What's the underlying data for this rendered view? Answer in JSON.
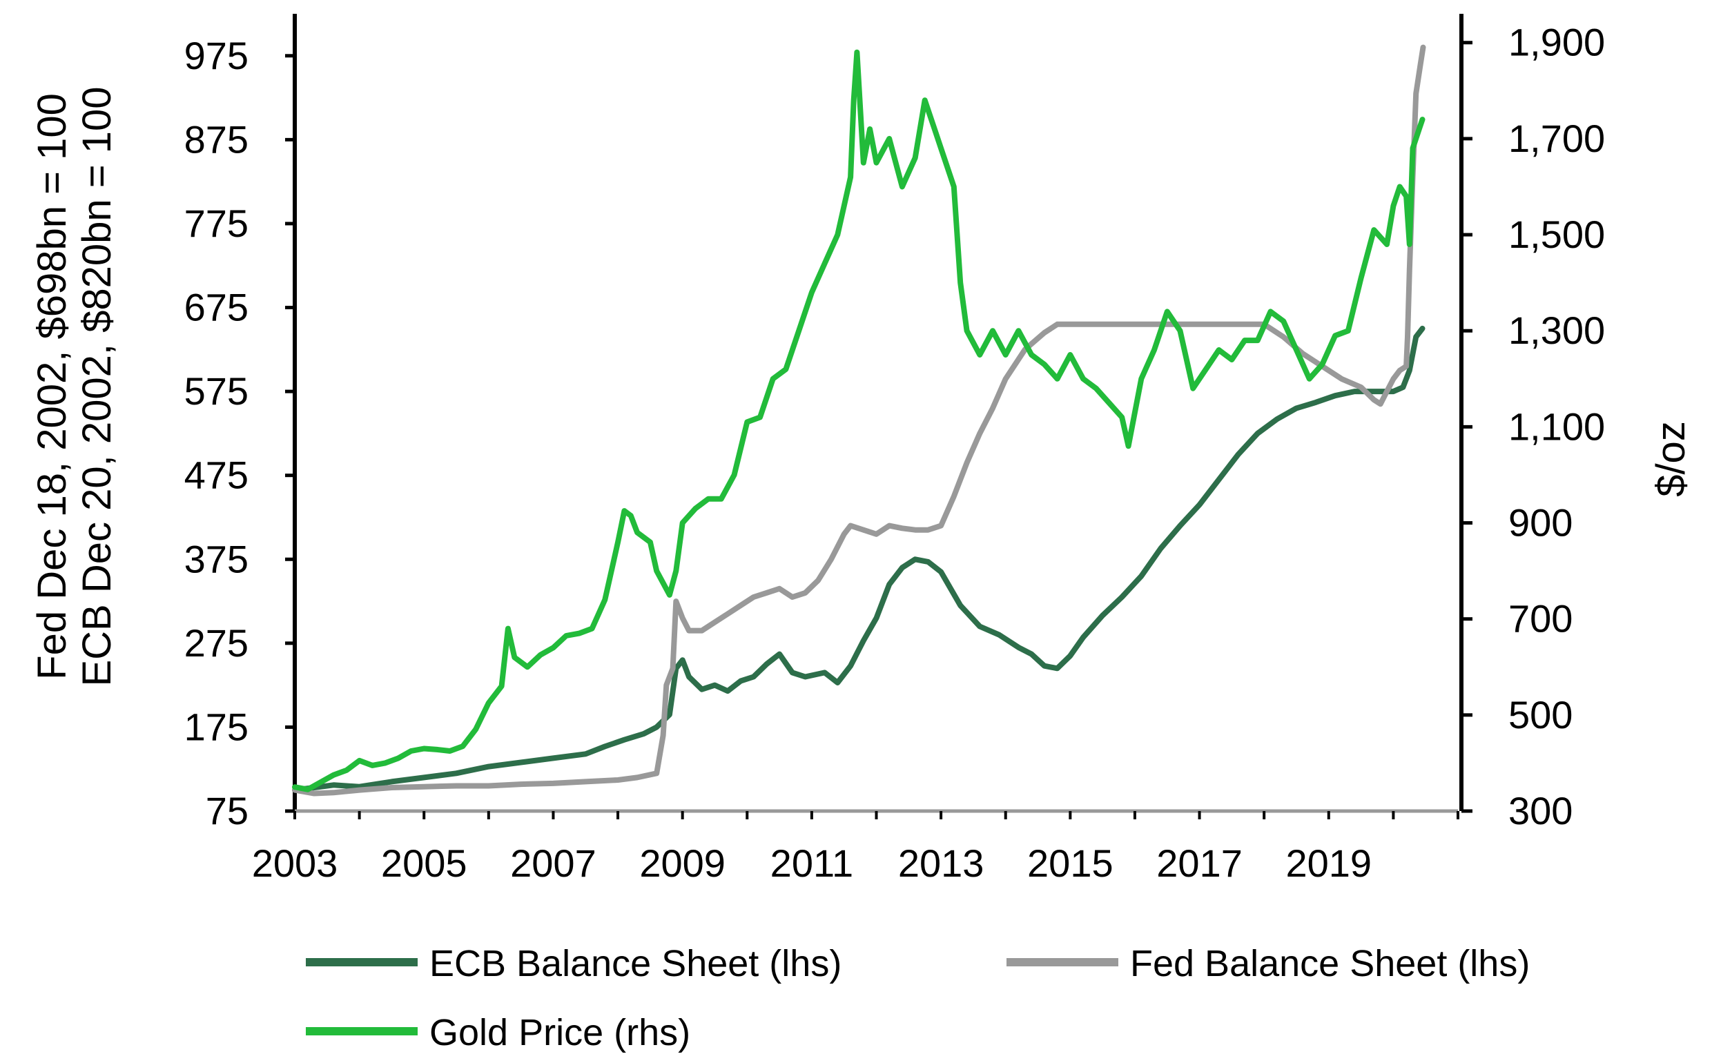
{
  "chart_data": {
    "type": "line",
    "title": "",
    "x_ticks": [
      "2003",
      "2005",
      "2007",
      "2009",
      "2011",
      "2013",
      "2015",
      "2017",
      "2019"
    ],
    "xlim": [
      2003.0,
      2021.0
    ],
    "y_left": {
      "label_line1": "Fed Dec 18, 2002, $698bn = 100",
      "label_line2": "ECB Dec 20, 2002, $820bn = 100",
      "lim": [
        75,
        1025
      ],
      "ticks": [
        75,
        175,
        275,
        375,
        475,
        575,
        675,
        775,
        875,
        975
      ],
      "tick_labels": [
        "75",
        "175",
        "275",
        "375",
        "475",
        "575",
        "675",
        "775",
        "875",
        "975"
      ]
    },
    "y_right": {
      "label": "$/oz",
      "lim": [
        300,
        1960
      ],
      "ticks": [
        300,
        500,
        700,
        900,
        1100,
        1300,
        1500,
        1700,
        1900
      ],
      "tick_labels": [
        "300",
        "500",
        "700",
        "900",
        "1,100",
        "1,300",
        "1,500",
        "1,700",
        "1,900"
      ]
    },
    "legend_position": "bottom",
    "series": [
      {
        "name": "ECB Balance Sheet (lhs)",
        "axis": "left",
        "color": "#2d6e4a",
        "points": [
          [
            2003.0,
            100
          ],
          [
            2003.3,
            103
          ],
          [
            2003.6,
            106
          ],
          [
            2004.0,
            104
          ],
          [
            2004.5,
            110
          ],
          [
            2005.0,
            115
          ],
          [
            2005.5,
            120
          ],
          [
            2006.0,
            128
          ],
          [
            2006.5,
            133
          ],
          [
            2007.0,
            138
          ],
          [
            2007.5,
            143
          ],
          [
            2007.8,
            152
          ],
          [
            2008.1,
            160
          ],
          [
            2008.4,
            167
          ],
          [
            2008.6,
            175
          ],
          [
            2008.8,
            190
          ],
          [
            2008.9,
            245
          ],
          [
            2009.0,
            255
          ],
          [
            2009.1,
            235
          ],
          [
            2009.3,
            220
          ],
          [
            2009.5,
            225
          ],
          [
            2009.7,
            218
          ],
          [
            2009.9,
            230
          ],
          [
            2010.1,
            235
          ],
          [
            2010.3,
            250
          ],
          [
            2010.5,
            262
          ],
          [
            2010.7,
            240
          ],
          [
            2010.9,
            235
          ],
          [
            2011.2,
            240
          ],
          [
            2011.4,
            228
          ],
          [
            2011.6,
            248
          ],
          [
            2011.8,
            278
          ],
          [
            2012.0,
            305
          ],
          [
            2012.2,
            345
          ],
          [
            2012.4,
            365
          ],
          [
            2012.6,
            375
          ],
          [
            2012.8,
            372
          ],
          [
            2013.0,
            360
          ],
          [
            2013.3,
            320
          ],
          [
            2013.6,
            295
          ],
          [
            2013.9,
            285
          ],
          [
            2014.2,
            270
          ],
          [
            2014.4,
            262
          ],
          [
            2014.6,
            248
          ],
          [
            2014.8,
            245
          ],
          [
            2015.0,
            260
          ],
          [
            2015.2,
            282
          ],
          [
            2015.5,
            308
          ],
          [
            2015.8,
            330
          ],
          [
            2016.1,
            355
          ],
          [
            2016.4,
            388
          ],
          [
            2016.7,
            415
          ],
          [
            2017.0,
            440
          ],
          [
            2017.3,
            470
          ],
          [
            2017.6,
            500
          ],
          [
            2017.9,
            525
          ],
          [
            2018.2,
            542
          ],
          [
            2018.5,
            555
          ],
          [
            2018.8,
            562
          ],
          [
            2019.1,
            570
          ],
          [
            2019.4,
            575
          ],
          [
            2019.7,
            575
          ],
          [
            2019.9,
            575
          ],
          [
            2020.0,
            575
          ],
          [
            2020.15,
            580
          ],
          [
            2020.25,
            600
          ],
          [
            2020.35,
            640
          ],
          [
            2020.45,
            650
          ]
        ]
      },
      {
        "name": "Fed Balance Sheet (lhs)",
        "axis": "left",
        "color": "#999999",
        "points": [
          [
            2003.0,
            100
          ],
          [
            2003.3,
            96
          ],
          [
            2003.6,
            97
          ],
          [
            2004.0,
            100
          ],
          [
            2004.5,
            103
          ],
          [
            2005.0,
            104
          ],
          [
            2005.5,
            105
          ],
          [
            2006.0,
            105
          ],
          [
            2006.5,
            107
          ],
          [
            2007.0,
            108
          ],
          [
            2007.5,
            110
          ],
          [
            2008.0,
            112
          ],
          [
            2008.3,
            115
          ],
          [
            2008.6,
            120
          ],
          [
            2008.7,
            165
          ],
          [
            2008.75,
            225
          ],
          [
            2008.85,
            245
          ],
          [
            2008.9,
            325
          ],
          [
            2009.0,
            305
          ],
          [
            2009.1,
            290
          ],
          [
            2009.3,
            290
          ],
          [
            2009.5,
            300
          ],
          [
            2009.7,
            310
          ],
          [
            2009.9,
            320
          ],
          [
            2010.1,
            330
          ],
          [
            2010.3,
            335
          ],
          [
            2010.5,
            340
          ],
          [
            2010.7,
            330
          ],
          [
            2010.9,
            335
          ],
          [
            2011.1,
            350
          ],
          [
            2011.3,
            375
          ],
          [
            2011.5,
            405
          ],
          [
            2011.6,
            415
          ],
          [
            2011.8,
            410
          ],
          [
            2012.0,
            405
          ],
          [
            2012.2,
            415
          ],
          [
            2012.4,
            412
          ],
          [
            2012.6,
            410
          ],
          [
            2012.8,
            410
          ],
          [
            2013.0,
            415
          ],
          [
            2013.2,
            450
          ],
          [
            2013.4,
            490
          ],
          [
            2013.6,
            525
          ],
          [
            2013.8,
            555
          ],
          [
            2014.0,
            590
          ],
          [
            2014.3,
            625
          ],
          [
            2014.6,
            645
          ],
          [
            2014.8,
            655
          ],
          [
            2015.0,
            655
          ],
          [
            2015.5,
            655
          ],
          [
            2016.0,
            655
          ],
          [
            2016.5,
            655
          ],
          [
            2017.0,
            655
          ],
          [
            2017.5,
            655
          ],
          [
            2018.0,
            655
          ],
          [
            2018.3,
            640
          ],
          [
            2018.6,
            620
          ],
          [
            2018.9,
            605
          ],
          [
            2019.2,
            590
          ],
          [
            2019.5,
            580
          ],
          [
            2019.7,
            565
          ],
          [
            2019.8,
            560
          ],
          [
            2019.9,
            575
          ],
          [
            2020.0,
            590
          ],
          [
            2020.1,
            600
          ],
          [
            2020.2,
            605
          ],
          [
            2020.22,
            640
          ],
          [
            2020.25,
            720
          ],
          [
            2020.3,
            830
          ],
          [
            2020.35,
            930
          ],
          [
            2020.42,
            965
          ],
          [
            2020.46,
            985
          ]
        ]
      },
      {
        "name": "Gold Price (rhs)",
        "axis": "right",
        "color": "#22bb3a",
        "points": [
          [
            2003.0,
            350
          ],
          [
            2003.2,
            345
          ],
          [
            2003.4,
            360
          ],
          [
            2003.6,
            375
          ],
          [
            2003.8,
            385
          ],
          [
            2004.0,
            405
          ],
          [
            2004.2,
            395
          ],
          [
            2004.4,
            400
          ],
          [
            2004.6,
            410
          ],
          [
            2004.8,
            425
          ],
          [
            2005.0,
            430
          ],
          [
            2005.2,
            428
          ],
          [
            2005.4,
            425
          ],
          [
            2005.6,
            435
          ],
          [
            2005.8,
            470
          ],
          [
            2006.0,
            525
          ],
          [
            2006.2,
            560
          ],
          [
            2006.3,
            680
          ],
          [
            2006.4,
            620
          ],
          [
            2006.6,
            600
          ],
          [
            2006.8,
            625
          ],
          [
            2007.0,
            640
          ],
          [
            2007.2,
            665
          ],
          [
            2007.4,
            670
          ],
          [
            2007.6,
            680
          ],
          [
            2007.8,
            740
          ],
          [
            2008.0,
            860
          ],
          [
            2008.1,
            925
          ],
          [
            2008.2,
            915
          ],
          [
            2008.3,
            880
          ],
          [
            2008.5,
            860
          ],
          [
            2008.6,
            800
          ],
          [
            2008.8,
            750
          ],
          [
            2008.9,
            800
          ],
          [
            2009.0,
            900
          ],
          [
            2009.2,
            930
          ],
          [
            2009.4,
            950
          ],
          [
            2009.6,
            950
          ],
          [
            2009.8,
            1000
          ],
          [
            2010.0,
            1110
          ],
          [
            2010.2,
            1120
          ],
          [
            2010.4,
            1200
          ],
          [
            2010.6,
            1220
          ],
          [
            2010.8,
            1300
          ],
          [
            2011.0,
            1380
          ],
          [
            2011.2,
            1440
          ],
          [
            2011.4,
            1500
          ],
          [
            2011.6,
            1620
          ],
          [
            2011.65,
            1780
          ],
          [
            2011.7,
            1880
          ],
          [
            2011.8,
            1650
          ],
          [
            2011.9,
            1720
          ],
          [
            2012.0,
            1650
          ],
          [
            2012.2,
            1700
          ],
          [
            2012.4,
            1600
          ],
          [
            2012.6,
            1660
          ],
          [
            2012.75,
            1780
          ],
          [
            2012.9,
            1720
          ],
          [
            2013.0,
            1680
          ],
          [
            2013.2,
            1600
          ],
          [
            2013.3,
            1400
          ],
          [
            2013.4,
            1300
          ],
          [
            2013.6,
            1250
          ],
          [
            2013.8,
            1300
          ],
          [
            2014.0,
            1250
          ],
          [
            2014.2,
            1300
          ],
          [
            2014.4,
            1250
          ],
          [
            2014.6,
            1230
          ],
          [
            2014.8,
            1200
          ],
          [
            2015.0,
            1250
          ],
          [
            2015.2,
            1200
          ],
          [
            2015.4,
            1180
          ],
          [
            2015.6,
            1150
          ],
          [
            2015.8,
            1120
          ],
          [
            2015.9,
            1060
          ],
          [
            2016.1,
            1200
          ],
          [
            2016.3,
            1260
          ],
          [
            2016.5,
            1340
          ],
          [
            2016.7,
            1300
          ],
          [
            2016.9,
            1180
          ],
          [
            2017.1,
            1220
          ],
          [
            2017.3,
            1260
          ],
          [
            2017.5,
            1240
          ],
          [
            2017.7,
            1280
          ],
          [
            2017.9,
            1280
          ],
          [
            2018.1,
            1340
          ],
          [
            2018.3,
            1320
          ],
          [
            2018.5,
            1260
          ],
          [
            2018.7,
            1200
          ],
          [
            2018.9,
            1230
          ],
          [
            2019.1,
            1290
          ],
          [
            2019.3,
            1300
          ],
          [
            2019.5,
            1410
          ],
          [
            2019.7,
            1510
          ],
          [
            2019.9,
            1480
          ],
          [
            2020.0,
            1560
          ],
          [
            2020.1,
            1600
          ],
          [
            2020.2,
            1580
          ],
          [
            2020.25,
            1480
          ],
          [
            2020.3,
            1680
          ],
          [
            2020.4,
            1720
          ],
          [
            2020.45,
            1740
          ]
        ]
      }
    ]
  }
}
